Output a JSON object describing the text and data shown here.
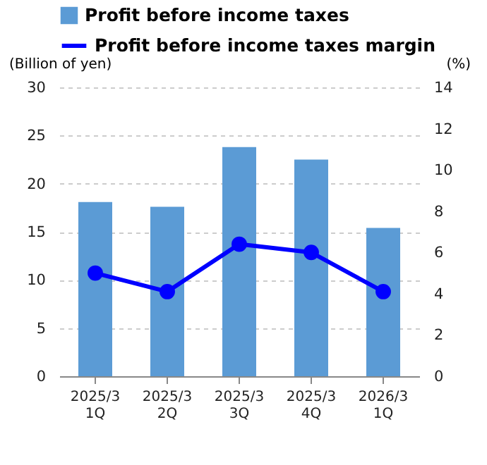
{
  "chart_data": {
    "type": "bar",
    "xlabel": null,
    "ylabel": "(Billion of yen)",
    "y2label": "(%)",
    "categories": [
      "2025/3\n1Q",
      "2025/3\n2Q",
      "2025/3\n3Q",
      "2025/3\n4Q",
      "2026/3\n1Q"
    ],
    "series": [
      {
        "name": "Profit before income taxes",
        "color": "#5b9bd5",
        "values": [
          18.1,
          17.6,
          23.8,
          22.5,
          15.4
        ]
      },
      {
        "name": "Profit before income taxes margin",
        "type": "line",
        "axis": "y2",
        "color": "#0000ff",
        "values": [
          5.0,
          4.1,
          6.4,
          6.0,
          4.1
        ]
      }
    ],
    "ylim": [
      0,
      30
    ],
    "yticks": [
      0,
      5,
      10,
      15,
      20,
      25,
      30
    ],
    "y2lim": [
      0,
      14
    ],
    "y2ticks": [
      0,
      2,
      4,
      6,
      8,
      10,
      12,
      14
    ],
    "grid": "y",
    "legend": "top left",
    "marker": "circle",
    "line_style": "solid"
  }
}
